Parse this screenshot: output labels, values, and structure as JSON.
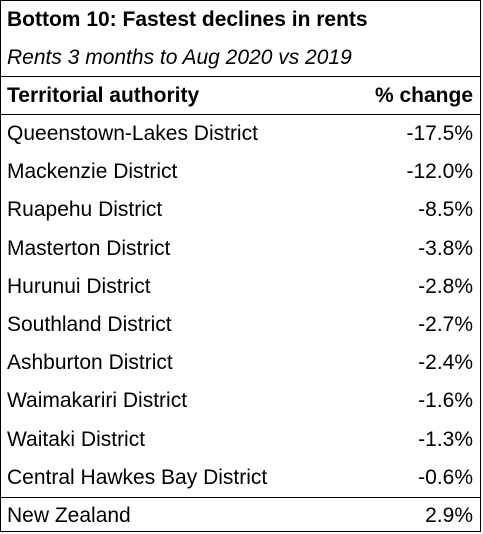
{
  "title": "Bottom 10: Fastest declines in rents",
  "subtitle": "Rents 3 months to Aug 2020 vs 2019",
  "columns": {
    "authority": "Territorial authority",
    "change": "% change"
  },
  "rows": [
    {
      "name": "Queenstown-Lakes District",
      "change": "-17.5%"
    },
    {
      "name": "Mackenzie District",
      "change": "-12.0%"
    },
    {
      "name": "Ruapehu District",
      "change": "-8.5%"
    },
    {
      "name": "Masterton District",
      "change": "-3.8%"
    },
    {
      "name": "Hurunui District",
      "change": "-2.8%"
    },
    {
      "name": "Southland District",
      "change": "-2.7%"
    },
    {
      "name": "Ashburton District",
      "change": "-2.4%"
    },
    {
      "name": "Waimakariri District",
      "change": "-1.6%"
    },
    {
      "name": "Waitaki District",
      "change": "-1.3%"
    },
    {
      "name": "Central Hawkes Bay District",
      "change": "-0.6%"
    }
  ],
  "total": {
    "name": "New Zealand",
    "change": "2.9%"
  }
}
